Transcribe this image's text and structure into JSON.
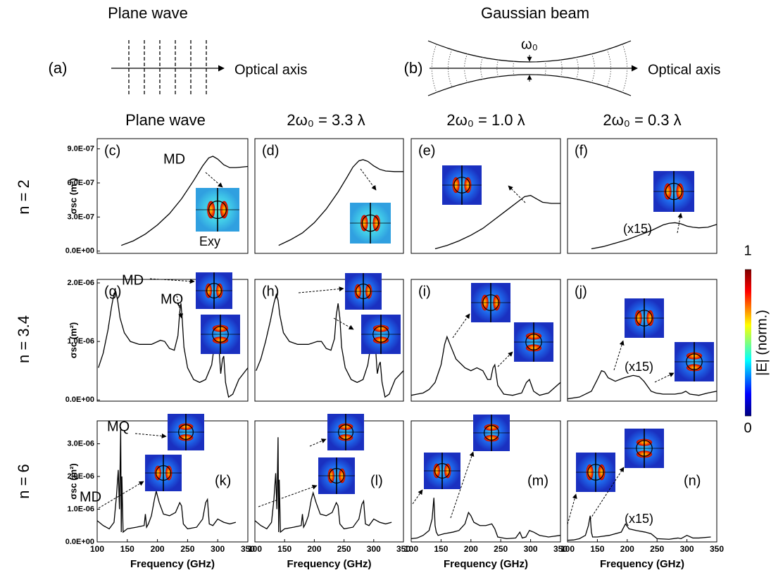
{
  "diagram": {
    "a": {
      "label": "(a)",
      "title": "Plane wave",
      "axis": "Optical axis"
    },
    "b": {
      "label": "(b)",
      "title": "Gaussian beam",
      "waist": "ω₀",
      "axis": "Optical axis"
    }
  },
  "columns": [
    "Plane wave",
    "2ω₀ = 3.3 λ",
    "2ω₀ = 1.0 λ",
    "2ω₀ = 0.3 λ"
  ],
  "rows": [
    "n = 2",
    "n = 3.4",
    "n = 6"
  ],
  "colorbar": {
    "label": "|E| (norm.)",
    "ticks": [
      0,
      1
    ]
  },
  "chart_data": [
    {
      "type": "line",
      "label": "(c)",
      "annotations": [
        "MD",
        "Exy"
      ],
      "ylabel": "σsc (m²)",
      "color": "#000000",
      "xlim": [
        100,
        350
      ],
      "ylim": [
        -2e-08,
        9.9e-07
      ],
      "yticks": [
        {
          "value": 0,
          "label": "0.0E+00"
        },
        {
          "value": 3e-07,
          "label": "3.0E-07"
        },
        {
          "value": 6e-07,
          "label": "6.0E-07"
        },
        {
          "value": 9e-07,
          "label": "9.0E-07"
        }
      ],
      "x": [
        140,
        160,
        180,
        200,
        220,
        240,
        260,
        275,
        285,
        292,
        300,
        310,
        320,
        330,
        340,
        350
      ],
      "values": [
        5e-08,
        9e-08,
        1.5e-07,
        2.3e-07,
        3.3e-07,
        4.6e-07,
        6.2e-07,
        7.5e-07,
        8.2e-07,
        8.35e-07,
        8.1e-07,
        7.6e-07,
        7.35e-07,
        7.35e-07,
        7.4e-07,
        7.45e-07
      ]
    },
    {
      "type": "line",
      "label": "(d)",
      "color": "#000000",
      "xlim": [
        100,
        350
      ],
      "ylim": [
        -2e-08,
        9.9e-07
      ],
      "x": [
        140,
        160,
        180,
        200,
        220,
        240,
        255,
        265,
        275,
        282,
        290,
        300,
        310,
        320,
        335,
        350
      ],
      "values": [
        5e-08,
        1e-07,
        1.6e-07,
        2.5e-07,
        3.7e-07,
        5.2e-07,
        6.5e-07,
        7.4e-07,
        7.95e-07,
        8.05e-07,
        7.9e-07,
        7.5e-07,
        7.2e-07,
        7.05e-07,
        7e-07,
        7e-07
      ]
    },
    {
      "type": "line",
      "label": "(e)",
      "color": "#000000",
      "xlim": [
        100,
        350
      ],
      "ylim": [
        -2e-08,
        9.9e-07
      ],
      "x": [
        140,
        160,
        180,
        200,
        220,
        240,
        260,
        280,
        290,
        300,
        310,
        320,
        335,
        350
      ],
      "values": [
        2e-08,
        5e-08,
        9e-08,
        1.4e-07,
        2e-07,
        2.8e-07,
        3.6e-07,
        4.4e-07,
        4.8e-07,
        4.9e-07,
        4.6e-07,
        4.3e-07,
        4.2e-07,
        4.2e-07
      ]
    },
    {
      "type": "line",
      "label": "(f)",
      "annotations": [
        "(x15)"
      ],
      "color": "#000000",
      "xlim": [
        100,
        350
      ],
      "ylim": [
        -2e-08,
        9.9e-07
      ],
      "x": [
        140,
        160,
        180,
        200,
        220,
        240,
        260,
        270,
        280,
        290,
        300,
        310,
        320,
        335,
        350
      ],
      "values": [
        2e-08,
        4e-08,
        7e-08,
        1e-07,
        1.4e-07,
        1.8e-07,
        2.3e-07,
        2.45e-07,
        2.5e-07,
        2.4e-07,
        2.2e-07,
        2.1e-07,
        2.05e-07,
        2.1e-07,
        2.35e-07
      ]
    },
    {
      "type": "line",
      "label": "(g)",
      "annotations": [
        "MD",
        "MQ"
      ],
      "ylabel": "σsc (m²)",
      "color": "#000000",
      "xlim": [
        100,
        350
      ],
      "ylim": [
        -2e-08,
        2.06e-06
      ],
      "yticks": [
        {
          "value": 0,
          "label": "0.0E+00"
        },
        {
          "value": 1e-06,
          "label": "1.0E-06"
        },
        {
          "value": 2e-06,
          "label": "2.0E-06"
        }
      ],
      "x": [
        102,
        110,
        118,
        124,
        128,
        131,
        134,
        138,
        145,
        155,
        170,
        190,
        205,
        212,
        220,
        228,
        234,
        237,
        239,
        241,
        244,
        250,
        260,
        270,
        280,
        290,
        296,
        299,
        302,
        305,
        308,
        310,
        313,
        318,
        325,
        335,
        350
      ],
      "values": [
        5.5e-07,
        8e-07,
        1.2e-06,
        1.6e-06,
        1.82e-06,
        1.85e-06,
        1.7e-06,
        1.4e-06,
        1.15e-06,
        1e-06,
        9.5e-07,
        9.5e-07,
        1.02e-06,
        1e-06,
        8.8e-07,
        8.5e-07,
        1.1e-06,
        1.5e-06,
        1.65e-06,
        1.4e-06,
        9e-07,
        5.5e-07,
        3.5e-07,
        3e-07,
        3.5e-07,
        6e-07,
        1.05e-06,
        1.2e-06,
        9e-07,
        4.5e-07,
        7e-07,
        7.5e-07,
        3e-07,
        5e-08,
        1e-07,
        3.5e-07,
        5.5e-07
      ]
    },
    {
      "type": "line",
      "label": "(h)",
      "color": "#000000",
      "xlim": [
        100,
        350
      ],
      "ylim": [
        -2e-08,
        2.06e-06
      ],
      "x": [
        102,
        110,
        118,
        126,
        132,
        136,
        139,
        142,
        148,
        158,
        172,
        190,
        205,
        212,
        220,
        228,
        234,
        237,
        240,
        243,
        246,
        252,
        262,
        272,
        282,
        290,
        296,
        300,
        303,
        306,
        309,
        311,
        314,
        319,
        326,
        336,
        350
      ],
      "values": [
        5e-07,
        7e-07,
        1e-06,
        1.35e-06,
        1.65e-06,
        1.8e-06,
        1.7e-06,
        1.45e-06,
        1.15e-06,
        1e-06,
        9.5e-07,
        9.5e-07,
        1e-06,
        1e-06,
        8.8e-07,
        8.5e-07,
        1.05e-06,
        1.45e-06,
        1.65e-06,
        1.4e-06,
        9e-07,
        5.5e-07,
        3.5e-07,
        3e-07,
        3.5e-07,
        6e-07,
        1e-06,
        1.15e-06,
        9e-07,
        4.5e-07,
        6e-07,
        6.5e-07,
        3e-07,
        5e-08,
        1e-07,
        3.5e-07,
        5e-07
      ]
    },
    {
      "type": "line",
      "label": "(i)",
      "color": "#000000",
      "xlim": [
        100,
        350
      ],
      "ylim": [
        -2e-08,
        2.06e-06
      ],
      "x": [
        100,
        110,
        120,
        130,
        140,
        150,
        156,
        160,
        165,
        175,
        190,
        200,
        210,
        220,
        228,
        233,
        237,
        240,
        245,
        255,
        270,
        285,
        293,
        298,
        305,
        315,
        330,
        350
      ],
      "values": [
        8e-08,
        1e-07,
        1.2e-07,
        1.8e-07,
        3e-07,
        6e-07,
        9.5e-07,
        1.08e-06,
        9.5e-07,
        7e-07,
        5.5e-07,
        5e-07,
        5.5e-07,
        5e-07,
        3.5e-07,
        3.5e-07,
        5.5e-07,
        6e-07,
        2.5e-07,
        1e-07,
        8e-08,
        1.2e-07,
        3e-07,
        3.5e-07,
        1.5e-07,
        8e-08,
        1.2e-07,
        3e-07
      ]
    },
    {
      "type": "line",
      "label": "(j)",
      "annotations": [
        "(x15)"
      ],
      "color": "#000000",
      "xlim": [
        100,
        350
      ],
      "ylim": [
        -2e-08,
        2.06e-06
      ],
      "x": [
        100,
        120,
        140,
        150,
        157,
        162,
        168,
        180,
        195,
        210,
        220,
        228,
        235,
        240,
        248,
        260,
        280,
        292,
        298,
        305,
        320,
        335,
        350
      ],
      "values": [
        2e-08,
        5e-08,
        1.5e-07,
        3.5e-07,
        5e-07,
        4.8e-07,
        3.8e-07,
        3.2e-07,
        3.8e-07,
        4.2e-07,
        4e-07,
        3.2e-07,
        2.2e-07,
        1.5e-07,
        1.2e-07,
        1e-07,
        1e-07,
        1.2e-07,
        1.5e-07,
        1e-07,
        8e-08,
        1.2e-07,
        1.5e-07
      ]
    },
    {
      "type": "line",
      "label": "(k)",
      "annotations": [
        "MQ",
        "MD"
      ],
      "ylabel": "σsc (m²)",
      "xlabel": "Frequency (GHz)",
      "color": "#000000",
      "xlim": [
        100,
        350
      ],
      "ylim": [
        0,
        3.7e-06
      ],
      "xticks": [
        100,
        150,
        200,
        250,
        300,
        350
      ],
      "yticks": [
        {
          "value": 0,
          "label": "0.0E+00"
        },
        {
          "value": 1e-06,
          "label": "1.0E-06"
        },
        {
          "value": 2e-06,
          "label": "2.0E-06"
        },
        {
          "value": 3e-06,
          "label": "3.0E-06"
        }
      ],
      "x": [
        100,
        110,
        120,
        128,
        132,
        135,
        137,
        139,
        140,
        141,
        143,
        150,
        165,
        178,
        180,
        182,
        185,
        190,
        195,
        198,
        203,
        210,
        220,
        230,
        237,
        240,
        243,
        250,
        265,
        275,
        280,
        283,
        286,
        292,
        300,
        310,
        320,
        330
      ],
      "values": [
        6.5e-07,
        5e-07,
        4e-07,
        6e-07,
        1.4e-06,
        2.2e-06,
        1e-06,
        3.5e-06,
        3e-07,
        2e-06,
        3e-07,
        4e-07,
        4.5e-07,
        5e-07,
        8.5e-07,
        4.5e-07,
        5.5e-07,
        8e-07,
        1.3e-06,
        1.55e-06,
        1.2e-06,
        8.5e-07,
        8e-07,
        9e-07,
        1.2e-06,
        1.1e-06,
        5.5e-07,
        4e-07,
        4.5e-07,
        7e-07,
        1.2e-06,
        1.3e-06,
        5.5e-07,
        5e-07,
        7e-07,
        6e-07,
        5.5e-07,
        6e-07
      ]
    },
    {
      "type": "line",
      "label": "(l)",
      "xlabel": "Frequency (GHz)",
      "color": "#000000",
      "xlim": [
        100,
        350
      ],
      "ylim": [
        0,
        3.7e-06
      ],
      "xticks": [
        100,
        150,
        200,
        250,
        300,
        350
      ],
      "x": [
        100,
        110,
        120,
        128,
        132,
        135,
        137,
        139,
        140,
        141,
        143,
        150,
        165,
        178,
        180,
        182,
        185,
        190,
        195,
        198,
        203,
        210,
        220,
        230,
        237,
        240,
        243,
        250,
        265,
        275,
        280,
        283,
        286,
        292,
        300,
        310,
        320,
        330
      ],
      "values": [
        6.5e-07,
        5e-07,
        4e-07,
        6e-07,
        1.3e-06,
        2.1e-06,
        1e-06,
        3.2e-06,
        3e-07,
        1.9e-06,
        3e-07,
        4e-07,
        4.5e-07,
        5e-07,
        8.5e-07,
        4.5e-07,
        5.5e-07,
        8e-07,
        1.3e-06,
        1.5e-06,
        1.2e-06,
        8.5e-07,
        8e-07,
        9e-07,
        1.2e-06,
        1.1e-06,
        5.5e-07,
        4e-07,
        4.5e-07,
        7e-07,
        1.15e-06,
        1.25e-06,
        5.5e-07,
        5e-07,
        7e-07,
        6e-07,
        5.5e-07,
        6e-07
      ]
    },
    {
      "type": "line",
      "label": "(m)",
      "xlabel": "Frequency (GHz)",
      "color": "#000000",
      "xlim": [
        100,
        350
      ],
      "ylim": [
        0,
        3.7e-06
      ],
      "xticks": [
        100,
        150,
        200,
        250,
        300,
        350
      ],
      "x": [
        100,
        110,
        120,
        130,
        135,
        138,
        140,
        142,
        145,
        155,
        170,
        180,
        190,
        196,
        200,
        205,
        215,
        225,
        235,
        240,
        245,
        260,
        275,
        282,
        286,
        292,
        298,
        305,
        315,
        330,
        350
      ],
      "values": [
        1e-07,
        1.2e-07,
        2e-07,
        3.5e-07,
        7e-07,
        1.35e-06,
        5e-07,
        3e-07,
        2e-07,
        2.5e-07,
        3e-07,
        3.5e-07,
        5.5e-07,
        9e-07,
        8e-07,
        6e-07,
        5e-07,
        5e-07,
        5.5e-07,
        4e-07,
        1.5e-07,
        1e-07,
        1.2e-07,
        3e-07,
        1.2e-07,
        1.5e-07,
        3.5e-07,
        3e-07,
        2e-07,
        1.5e-07,
        2e-07
      ]
    },
    {
      "type": "line",
      "label": "(n)",
      "annotations": [
        "(x15)"
      ],
      "xlabel": "Frequency (GHz)",
      "color": "#000000",
      "xlim": [
        100,
        350
      ],
      "ylim": [
        0,
        3.7e-06
      ],
      "xticks": [
        100,
        150,
        200,
        250,
        300,
        350
      ],
      "x": [
        100,
        110,
        120,
        130,
        135,
        138,
        140,
        142,
        150,
        170,
        190,
        197,
        203,
        215,
        230,
        240,
        250,
        270,
        285,
        290,
        300,
        310,
        320,
        340
      ],
      "values": [
        5e-08,
        6e-08,
        1e-07,
        2e-07,
        5e-07,
        8e-07,
        3e-07,
        1.5e-07,
        1.5e-07,
        2e-07,
        3e-07,
        5.5e-07,
        4e-07,
        3.5e-07,
        3e-07,
        2.5e-07,
        1e-07,
        8e-08,
        1.2e-07,
        1e-07,
        2e-07,
        1.2e-07,
        1.2e-07,
        1.5e-07
      ]
    }
  ]
}
